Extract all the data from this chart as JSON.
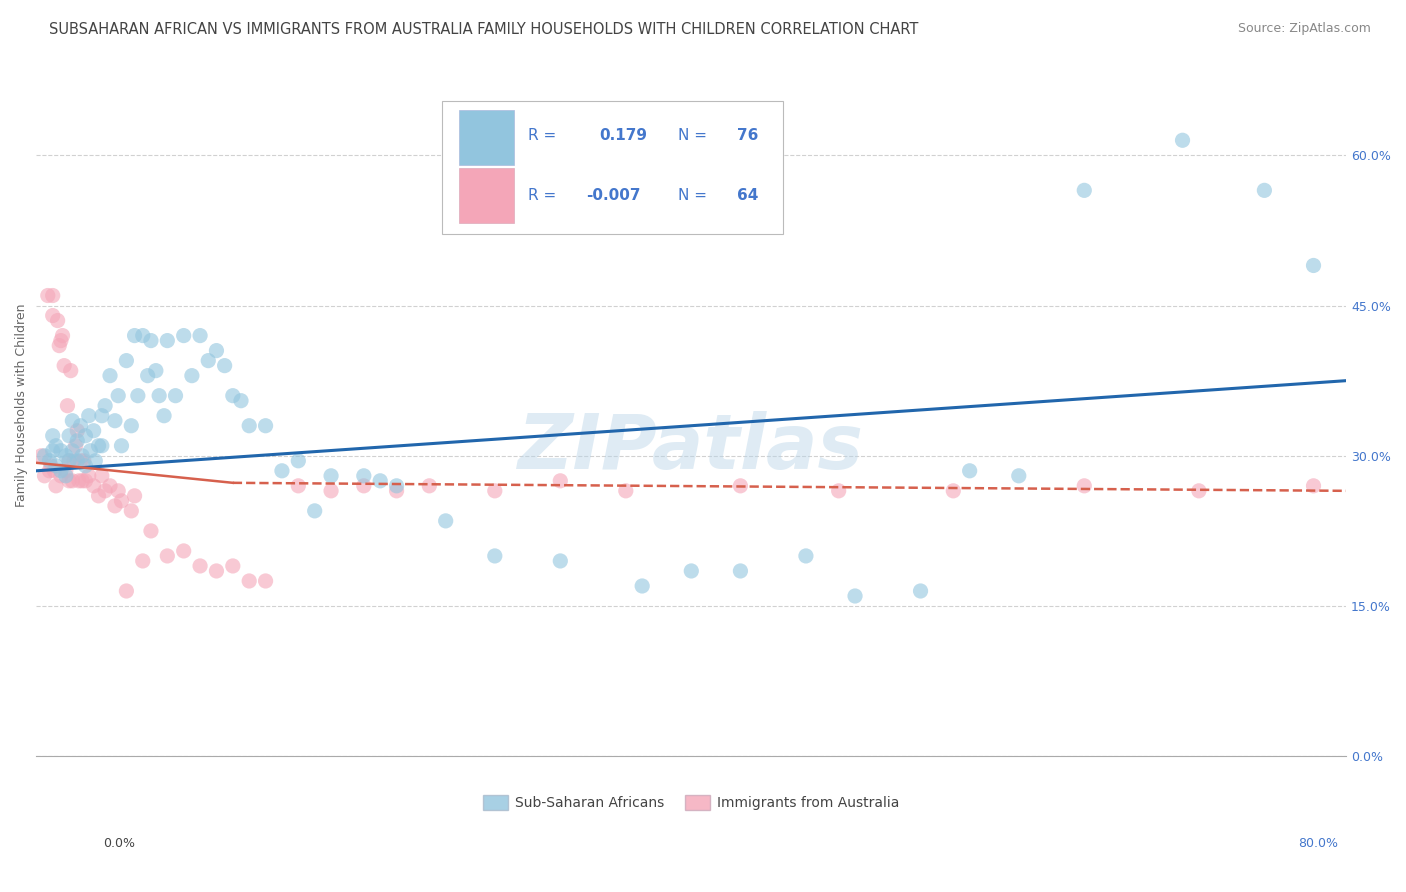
{
  "title": "SUBSAHARAN AFRICAN VS IMMIGRANTS FROM AUSTRALIA FAMILY HOUSEHOLDS WITH CHILDREN CORRELATION CHART",
  "source": "Source: ZipAtlas.com",
  "ylabel": "Family Households with Children",
  "blue_R": 0.179,
  "blue_N": 76,
  "pink_R": -0.007,
  "pink_N": 64,
  "blue_color": "#92c5de",
  "pink_color": "#f4a6b8",
  "blue_line_color": "#2166ac",
  "pink_line_color": "#d6604d",
  "legend_label_blue": "Sub-Saharan Africans",
  "legend_label_pink": "Immigrants from Australia",
  "watermark": "ZIPatlas",
  "background_color": "#ffffff",
  "grid_color": "#cccccc",
  "title_color": "#555555",
  "text_color": "#4477cc",
  "xlim": [
    0.0,
    0.8
  ],
  "ylim": [
    0.0,
    0.7
  ],
  "ytick_vals": [
    0.0,
    0.15,
    0.3,
    0.45,
    0.6
  ],
  "ytick_labels": [
    "0.0%",
    "15.0%",
    "30.0%",
    "45.0%",
    "60.0%"
  ],
  "blue_scatter_x": [
    0.005,
    0.008,
    0.01,
    0.01,
    0.012,
    0.012,
    0.015,
    0.015,
    0.018,
    0.018,
    0.02,
    0.02,
    0.022,
    0.022,
    0.025,
    0.025,
    0.027,
    0.028,
    0.03,
    0.03,
    0.032,
    0.033,
    0.035,
    0.036,
    0.038,
    0.04,
    0.04,
    0.042,
    0.045,
    0.048,
    0.05,
    0.052,
    0.055,
    0.058,
    0.06,
    0.062,
    0.065,
    0.068,
    0.07,
    0.073,
    0.075,
    0.078,
    0.08,
    0.085,
    0.09,
    0.095,
    0.1,
    0.105,
    0.11,
    0.115,
    0.12,
    0.125,
    0.13,
    0.14,
    0.15,
    0.16,
    0.17,
    0.18,
    0.2,
    0.21,
    0.22,
    0.25,
    0.28,
    0.32,
    0.37,
    0.4,
    0.43,
    0.47,
    0.5,
    0.54,
    0.57,
    0.6,
    0.64,
    0.7,
    0.75,
    0.78
  ],
  "blue_scatter_y": [
    0.3,
    0.295,
    0.32,
    0.305,
    0.31,
    0.29,
    0.305,
    0.285,
    0.3,
    0.28,
    0.32,
    0.295,
    0.335,
    0.305,
    0.315,
    0.295,
    0.33,
    0.3,
    0.32,
    0.29,
    0.34,
    0.305,
    0.325,
    0.295,
    0.31,
    0.34,
    0.31,
    0.35,
    0.38,
    0.335,
    0.36,
    0.31,
    0.395,
    0.33,
    0.42,
    0.36,
    0.42,
    0.38,
    0.415,
    0.385,
    0.36,
    0.34,
    0.415,
    0.36,
    0.42,
    0.38,
    0.42,
    0.395,
    0.405,
    0.39,
    0.36,
    0.355,
    0.33,
    0.33,
    0.285,
    0.295,
    0.245,
    0.28,
    0.28,
    0.275,
    0.27,
    0.235,
    0.2,
    0.195,
    0.17,
    0.185,
    0.185,
    0.2,
    0.16,
    0.165,
    0.285,
    0.28,
    0.565,
    0.615,
    0.565,
    0.49
  ],
  "pink_scatter_x": [
    0.003,
    0.005,
    0.007,
    0.008,
    0.009,
    0.01,
    0.01,
    0.011,
    0.012,
    0.013,
    0.014,
    0.015,
    0.015,
    0.016,
    0.017,
    0.018,
    0.019,
    0.02,
    0.02,
    0.021,
    0.022,
    0.023,
    0.024,
    0.025,
    0.026,
    0.027,
    0.028,
    0.029,
    0.03,
    0.032,
    0.035,
    0.038,
    0.04,
    0.042,
    0.045,
    0.048,
    0.05,
    0.052,
    0.055,
    0.058,
    0.06,
    0.065,
    0.07,
    0.08,
    0.09,
    0.1,
    0.11,
    0.12,
    0.13,
    0.14,
    0.16,
    0.18,
    0.2,
    0.22,
    0.24,
    0.28,
    0.32,
    0.36,
    0.43,
    0.49,
    0.56,
    0.64,
    0.71,
    0.78
  ],
  "pink_scatter_y": [
    0.3,
    0.28,
    0.46,
    0.285,
    0.29,
    0.46,
    0.44,
    0.285,
    0.27,
    0.435,
    0.41,
    0.28,
    0.415,
    0.42,
    0.39,
    0.285,
    0.35,
    0.275,
    0.295,
    0.385,
    0.275,
    0.295,
    0.31,
    0.325,
    0.275,
    0.295,
    0.275,
    0.295,
    0.275,
    0.28,
    0.27,
    0.26,
    0.28,
    0.265,
    0.27,
    0.25,
    0.265,
    0.255,
    0.165,
    0.245,
    0.26,
    0.195,
    0.225,
    0.2,
    0.205,
    0.19,
    0.185,
    0.19,
    0.175,
    0.175,
    0.27,
    0.265,
    0.27,
    0.265,
    0.27,
    0.265,
    0.275,
    0.265,
    0.27,
    0.265,
    0.265,
    0.27,
    0.265,
    0.27
  ],
  "title_fontsize": 10.5,
  "source_fontsize": 9,
  "axis_label_fontsize": 9,
  "stats_fontsize": 11
}
